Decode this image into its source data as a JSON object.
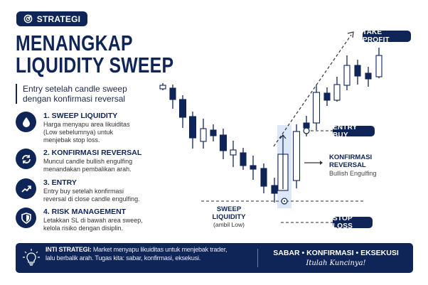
{
  "header": {
    "badge": "STRATEGI",
    "badge_icon": "target-icon",
    "title_line1": "MENANGKAP",
    "title_line2": "LIQUIDITY SWEEP",
    "subtitle_line1": "Entry setelah candle sweep",
    "subtitle_line2": "dengan konfirmasi reversal"
  },
  "steps": [
    {
      "icon": "droplet-icon",
      "title": "1. SWEEP LIQUIDITY",
      "lines": [
        "Harga menyapu area likuiditas",
        "(Low sebelumnya) untuk",
        "menjebak stop loss."
      ]
    },
    {
      "icon": "refresh-icon",
      "title": "2. KONFIRMASI REVERSAL",
      "lines": [
        "Muncul candle bullish engulfing",
        "menandakan pembalikan arah."
      ]
    },
    {
      "icon": "trend-up-icon",
      "title": "3. ENTRY",
      "lines": [
        "Entry buy setelah konfirmasi",
        "reversal di close candle engulfing."
      ]
    },
    {
      "icon": "shield-icon",
      "title": "4. RISK MANAGEMENT",
      "lines": [
        "Letakkan SL di bawah area sweep,",
        "kelola risiko dengan disiplin."
      ]
    }
  ],
  "chart": {
    "take_profit": "TAKE PROFIT",
    "entry_buy": "ENTRY BUY",
    "stop_loss": "STOP LOSS",
    "konfirmasi_line1": "KONFIRMASI",
    "konfirmasi_line2": "REVERSAL",
    "konfirmasi_sub": "Bullish Engulfing",
    "sweep_title": "SWEEP LIQUIDITY",
    "sweep_sub": "(ambil Low)"
  },
  "banner": {
    "icon": "lightbulb-icon",
    "label": "INTI STRATEGI:",
    "text_line1": " Market menyapu likuiditas untuk menjebak trader,",
    "text_line2": "lalu berbalik arah. Tugas kita: sabar, konfirmasi, eksekusi.",
    "motto": "SABAR • KONFIRMASI • EKSEKUSI",
    "tagline": "Itulah Kuncinya!"
  },
  "colors": {
    "navy": "#0f2557",
    "highlight": "#dce8f8"
  }
}
